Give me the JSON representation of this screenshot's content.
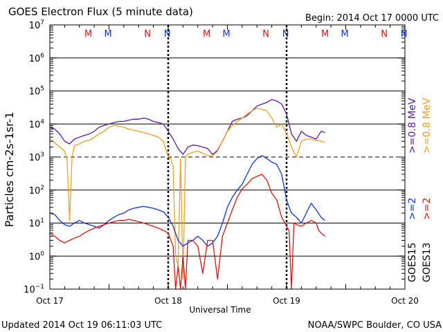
{
  "header": {
    "title": "GOES Electron Flux (5 minute data)",
    "begin": "Begin: 2014 Oct 17 0000 UTC"
  },
  "footer": {
    "updated": "Updated 2014 Oct 19 06:11:03 UTC",
    "source": "NOAA/SWPC Boulder, CO USA"
  },
  "colors": {
    "goes15_high": "#5a189a",
    "goes13_high": "#f0a020",
    "goes15_low": "#1030e0",
    "goes13_low": "#e01010",
    "marker_m_red": "#e01010",
    "marker_m_blue": "#1030e0"
  },
  "chart_data": {
    "type": "line",
    "title": "GOES Electron Flux (5 minute data)",
    "xlabel": "Universal Time",
    "ylabel": "Particles cm-2s-1sr-1",
    "y_scale": "log",
    "ylim": [
      0.1,
      10000000
    ],
    "xlim": [
      0,
      72
    ],
    "x_ticks": [
      {
        "x": 0,
        "label": "Oct 17"
      },
      {
        "x": 24,
        "label": "Oct 18"
      },
      {
        "x": 48,
        "label": "Oct 19"
      },
      {
        "x": 72,
        "label": "Oct 20"
      }
    ],
    "y_ticks": [
      {
        "exp": -1
      },
      {
        "exp": 0
      },
      {
        "exp": 1
      },
      {
        "exp": 2
      },
      {
        "exp": 3
      },
      {
        "exp": 4
      },
      {
        "exp": 5
      },
      {
        "exp": 6
      },
      {
        "exp": 7
      }
    ],
    "dashed_level": 1000,
    "day_dividers": [
      24,
      48
    ],
    "markers": [
      {
        "label": "M",
        "x": 7.8,
        "color": "#e01010"
      },
      {
        "label": "M",
        "x": 11.8,
        "color": "#1030e0"
      },
      {
        "label": "N",
        "x": 19.8,
        "color": "#e01010"
      },
      {
        "label": "N",
        "x": 23.8,
        "color": "#1030e0"
      },
      {
        "label": "M",
        "x": 31.8,
        "color": "#e01010"
      },
      {
        "label": "M",
        "x": 35.8,
        "color": "#1030e0"
      },
      {
        "label": "N",
        "x": 43.8,
        "color": "#e01010"
      },
      {
        "label": "N",
        "x": 47.8,
        "color": "#1030e0"
      },
      {
        "label": "M",
        "x": 55.8,
        "color": "#e01010"
      },
      {
        "label": "M",
        "x": 59.8,
        "color": "#1030e0"
      },
      {
        "label": "N",
        "x": 67.8,
        "color": "#e01010"
      },
      {
        "label": "N",
        "x": 71.8,
        "color": "#1030e0"
      }
    ],
    "right_labels": [
      {
        "text": ">=0.8 MeV",
        "color": "#5a189a"
      },
      {
        "text": ">=0.8 MeV",
        "color": "#f0a020"
      },
      {
        "text": ">=2",
        "color": "#1030e0"
      },
      {
        "text": ">=2",
        "color": "#e01010"
      },
      {
        "text": "GOES15",
        "color": "#000000"
      },
      {
        "text": "GOES13",
        "color": "#000000"
      }
    ],
    "series": [
      {
        "color": "#5a189a",
        "x": [
          0,
          1,
          2,
          3,
          4,
          5,
          6,
          7,
          8,
          9,
          10,
          11,
          12,
          13,
          14,
          15,
          16,
          17,
          18,
          19,
          20,
          21,
          22,
          23,
          24,
          25,
          26,
          27,
          28,
          29,
          30,
          31,
          32,
          33,
          34,
          35,
          36,
          37,
          38,
          39,
          40,
          41,
          42,
          43,
          44,
          45,
          46,
          47,
          48,
          49,
          50,
          51,
          52,
          53,
          54,
          55,
          55.8
        ],
        "y": [
          8000,
          7000,
          5000,
          3000,
          2500,
          3500,
          4000,
          4500,
          5000,
          6000,
          8000,
          9000,
          10000,
          11000,
          12000,
          12000,
          13000,
          14000,
          14000,
          15000,
          14000,
          12000,
          11000,
          10000,
          6000,
          3500,
          1800,
          1200,
          2000,
          2300,
          2200,
          2000,
          1800,
          1200,
          1600,
          3000,
          6000,
          12000,
          14000,
          15000,
          18000,
          25000,
          35000,
          40000,
          45000,
          55000,
          50000,
          40000,
          20000,
          5000,
          3000,
          6000,
          4500,
          4000,
          3500,
          6000,
          5500
        ]
      },
      {
        "color": "#f0a020",
        "x": [
          0,
          1,
          2,
          3,
          3.5,
          4,
          4.5,
          5,
          6,
          7,
          8,
          9,
          10,
          11,
          12,
          13,
          14,
          15,
          16,
          17,
          18,
          19,
          20,
          21,
          22,
          23,
          24,
          24.5,
          25,
          25.5,
          26,
          26.5,
          27,
          27.5,
          28,
          29,
          30,
          31,
          32,
          33,
          34,
          35,
          36,
          37,
          38,
          39,
          40,
          41,
          42,
          43,
          44,
          45,
          46,
          47,
          48,
          49,
          50,
          51,
          52,
          53,
          54,
          55,
          55.8
        ],
        "y": [
          3500,
          2700,
          2000,
          1500,
          800,
          12,
          1000,
          2200,
          2500,
          3000,
          3200,
          4000,
          5000,
          6000,
          8000,
          9000,
          8500,
          8000,
          7000,
          6500,
          6000,
          5500,
          5000,
          4500,
          4000,
          3000,
          1000,
          900,
          500,
          1,
          0.5,
          900,
          0.2,
          1000,
          1200,
          1400,
          1500,
          1300,
          1100,
          1100,
          1500,
          3000,
          6000,
          9000,
          12000,
          15000,
          20000,
          25000,
          30000,
          28000,
          25000,
          15000,
          8000,
          10000,
          5000,
          2000,
          1000,
          3000,
          3500,
          3500,
          3200,
          3000,
          2800
        ]
      },
      {
        "color": "#1030e0",
        "x": [
          0,
          1,
          2,
          3,
          4,
          5,
          6,
          7,
          8,
          9,
          10,
          11,
          12,
          13,
          14,
          15,
          16,
          17,
          18,
          19,
          20,
          21,
          22,
          23,
          24,
          25,
          26,
          27,
          28,
          29,
          30,
          31,
          32,
          33,
          34,
          35,
          36,
          37,
          38,
          39,
          40,
          41,
          42,
          43,
          44,
          45,
          46,
          47,
          48,
          49,
          50,
          51,
          52,
          53,
          54,
          55,
          55.8
        ],
        "y": [
          20,
          18,
          12,
          9,
          8,
          10,
          12,
          10,
          9,
          8,
          7,
          9,
          12,
          15,
          18,
          20,
          25,
          28,
          30,
          32,
          30,
          28,
          25,
          22,
          15,
          8,
          3,
          2,
          2.5,
          3,
          4,
          3,
          2,
          2.5,
          4,
          10,
          30,
          60,
          100,
          150,
          300,
          600,
          900,
          1100,
          900,
          700,
          600,
          300,
          50,
          20,
          15,
          10,
          20,
          40,
          25,
          15,
          12
        ]
      },
      {
        "color": "#e01010",
        "x": [
          0,
          1,
          2,
          3,
          4,
          5,
          6,
          7,
          8,
          9,
          10,
          11,
          12,
          13,
          14,
          15,
          16,
          17,
          18,
          19,
          20,
          21,
          22,
          23,
          24,
          25,
          25.5,
          26,
          26.5,
          27,
          27.5,
          28,
          29,
          30,
          31,
          32,
          33,
          34,
          35,
          36,
          37,
          38,
          39,
          40,
          41,
          42,
          43,
          44,
          45,
          46,
          47,
          48,
          48.5,
          49,
          49.5,
          50,
          51,
          52,
          53,
          54,
          54.5,
          55,
          55.8
        ],
        "y": [
          5,
          4,
          3,
          2.5,
          3,
          3.5,
          4,
          5,
          6,
          7,
          8,
          9,
          10,
          11,
          12,
          12,
          13,
          12,
          11,
          10,
          9,
          8,
          7,
          6,
          5,
          2,
          0.1,
          0.5,
          0.1,
          1,
          0.1,
          3,
          3,
          2,
          0.3,
          3,
          3,
          0.2,
          4,
          10,
          25,
          60,
          110,
          150,
          220,
          260,
          300,
          200,
          80,
          50,
          15,
          8,
          6,
          0.1,
          10,
          9,
          8,
          10,
          12,
          10,
          6,
          5,
          4
        ]
      }
    ]
  }
}
